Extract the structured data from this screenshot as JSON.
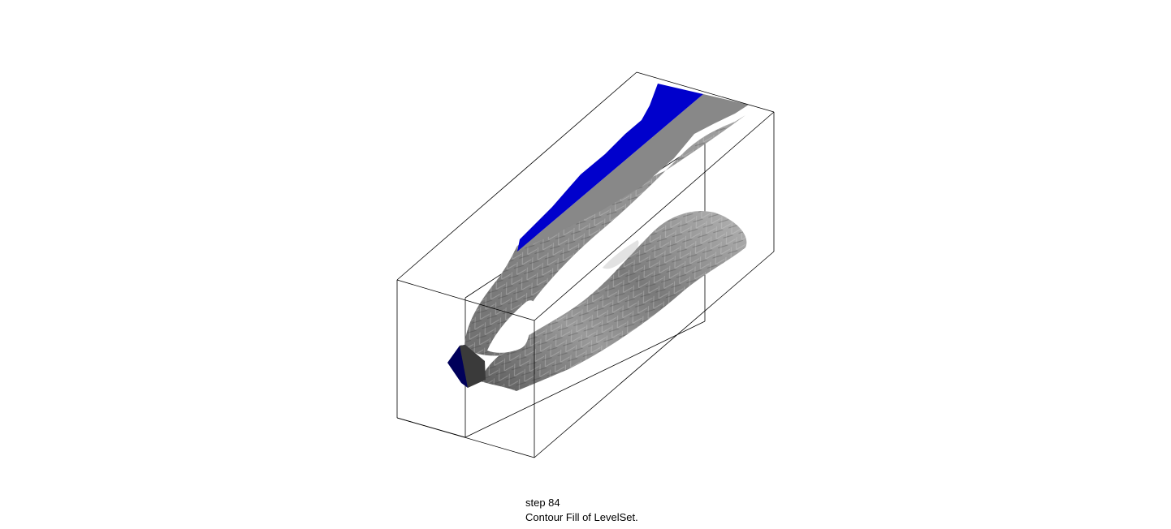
{
  "caption": {
    "step": "step 84",
    "description": "Contour Fill of LevelSet."
  },
  "colors": {
    "background": "#ffffff",
    "box_edges": "#000000",
    "top_fill": "#0000cc",
    "end_cap": "#00005a",
    "surface_light": "#c8c8c8",
    "surface_mid": "#8c8c8c",
    "surface_dark": "#3a3a3a"
  }
}
